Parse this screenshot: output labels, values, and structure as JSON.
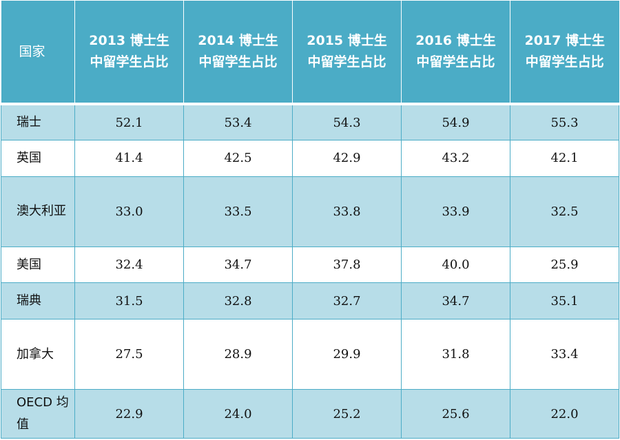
{
  "table": {
    "headers": [
      "国家",
      "2013 博士生\n中留学生占比",
      "2014 博士生\n中留学生占比",
      "2015 博士生\n中留学生占比",
      "2016 博士生\n中留学生占比",
      "2017 博士生\n中留学生占比"
    ],
    "rows": [
      {
        "country": "瑞士",
        "values": [
          "52.1",
          "53.4",
          "54.3",
          "54.9",
          "55.3"
        ]
      },
      {
        "country": "英国",
        "values": [
          "41.4",
          "42.5",
          "42.9",
          "43.2",
          "42.1"
        ]
      },
      {
        "country": "澳大利亚",
        "values": [
          "33.0",
          "33.5",
          "33.8",
          "33.9",
          "32.5"
        ]
      },
      {
        "country": "美国",
        "values": [
          "32.4",
          "34.7",
          "37.8",
          "40.0",
          "25.9"
        ]
      },
      {
        "country": "瑞典",
        "values": [
          "31.5",
          "32.8",
          "32.7",
          "34.7",
          "35.1"
        ]
      },
      {
        "country": "加拿大",
        "values": [
          "27.5",
          "28.9",
          "29.9",
          "31.8",
          "33.4"
        ]
      },
      {
        "country": "OECD 均值",
        "values": [
          "22.9",
          "24.0",
          "25.2",
          "25.6",
          "22.0"
        ]
      }
    ]
  },
  "colors": {
    "header_bg": "#4bacc6",
    "row_shade": "#b7dde8",
    "row_plain": "#ffffff"
  }
}
